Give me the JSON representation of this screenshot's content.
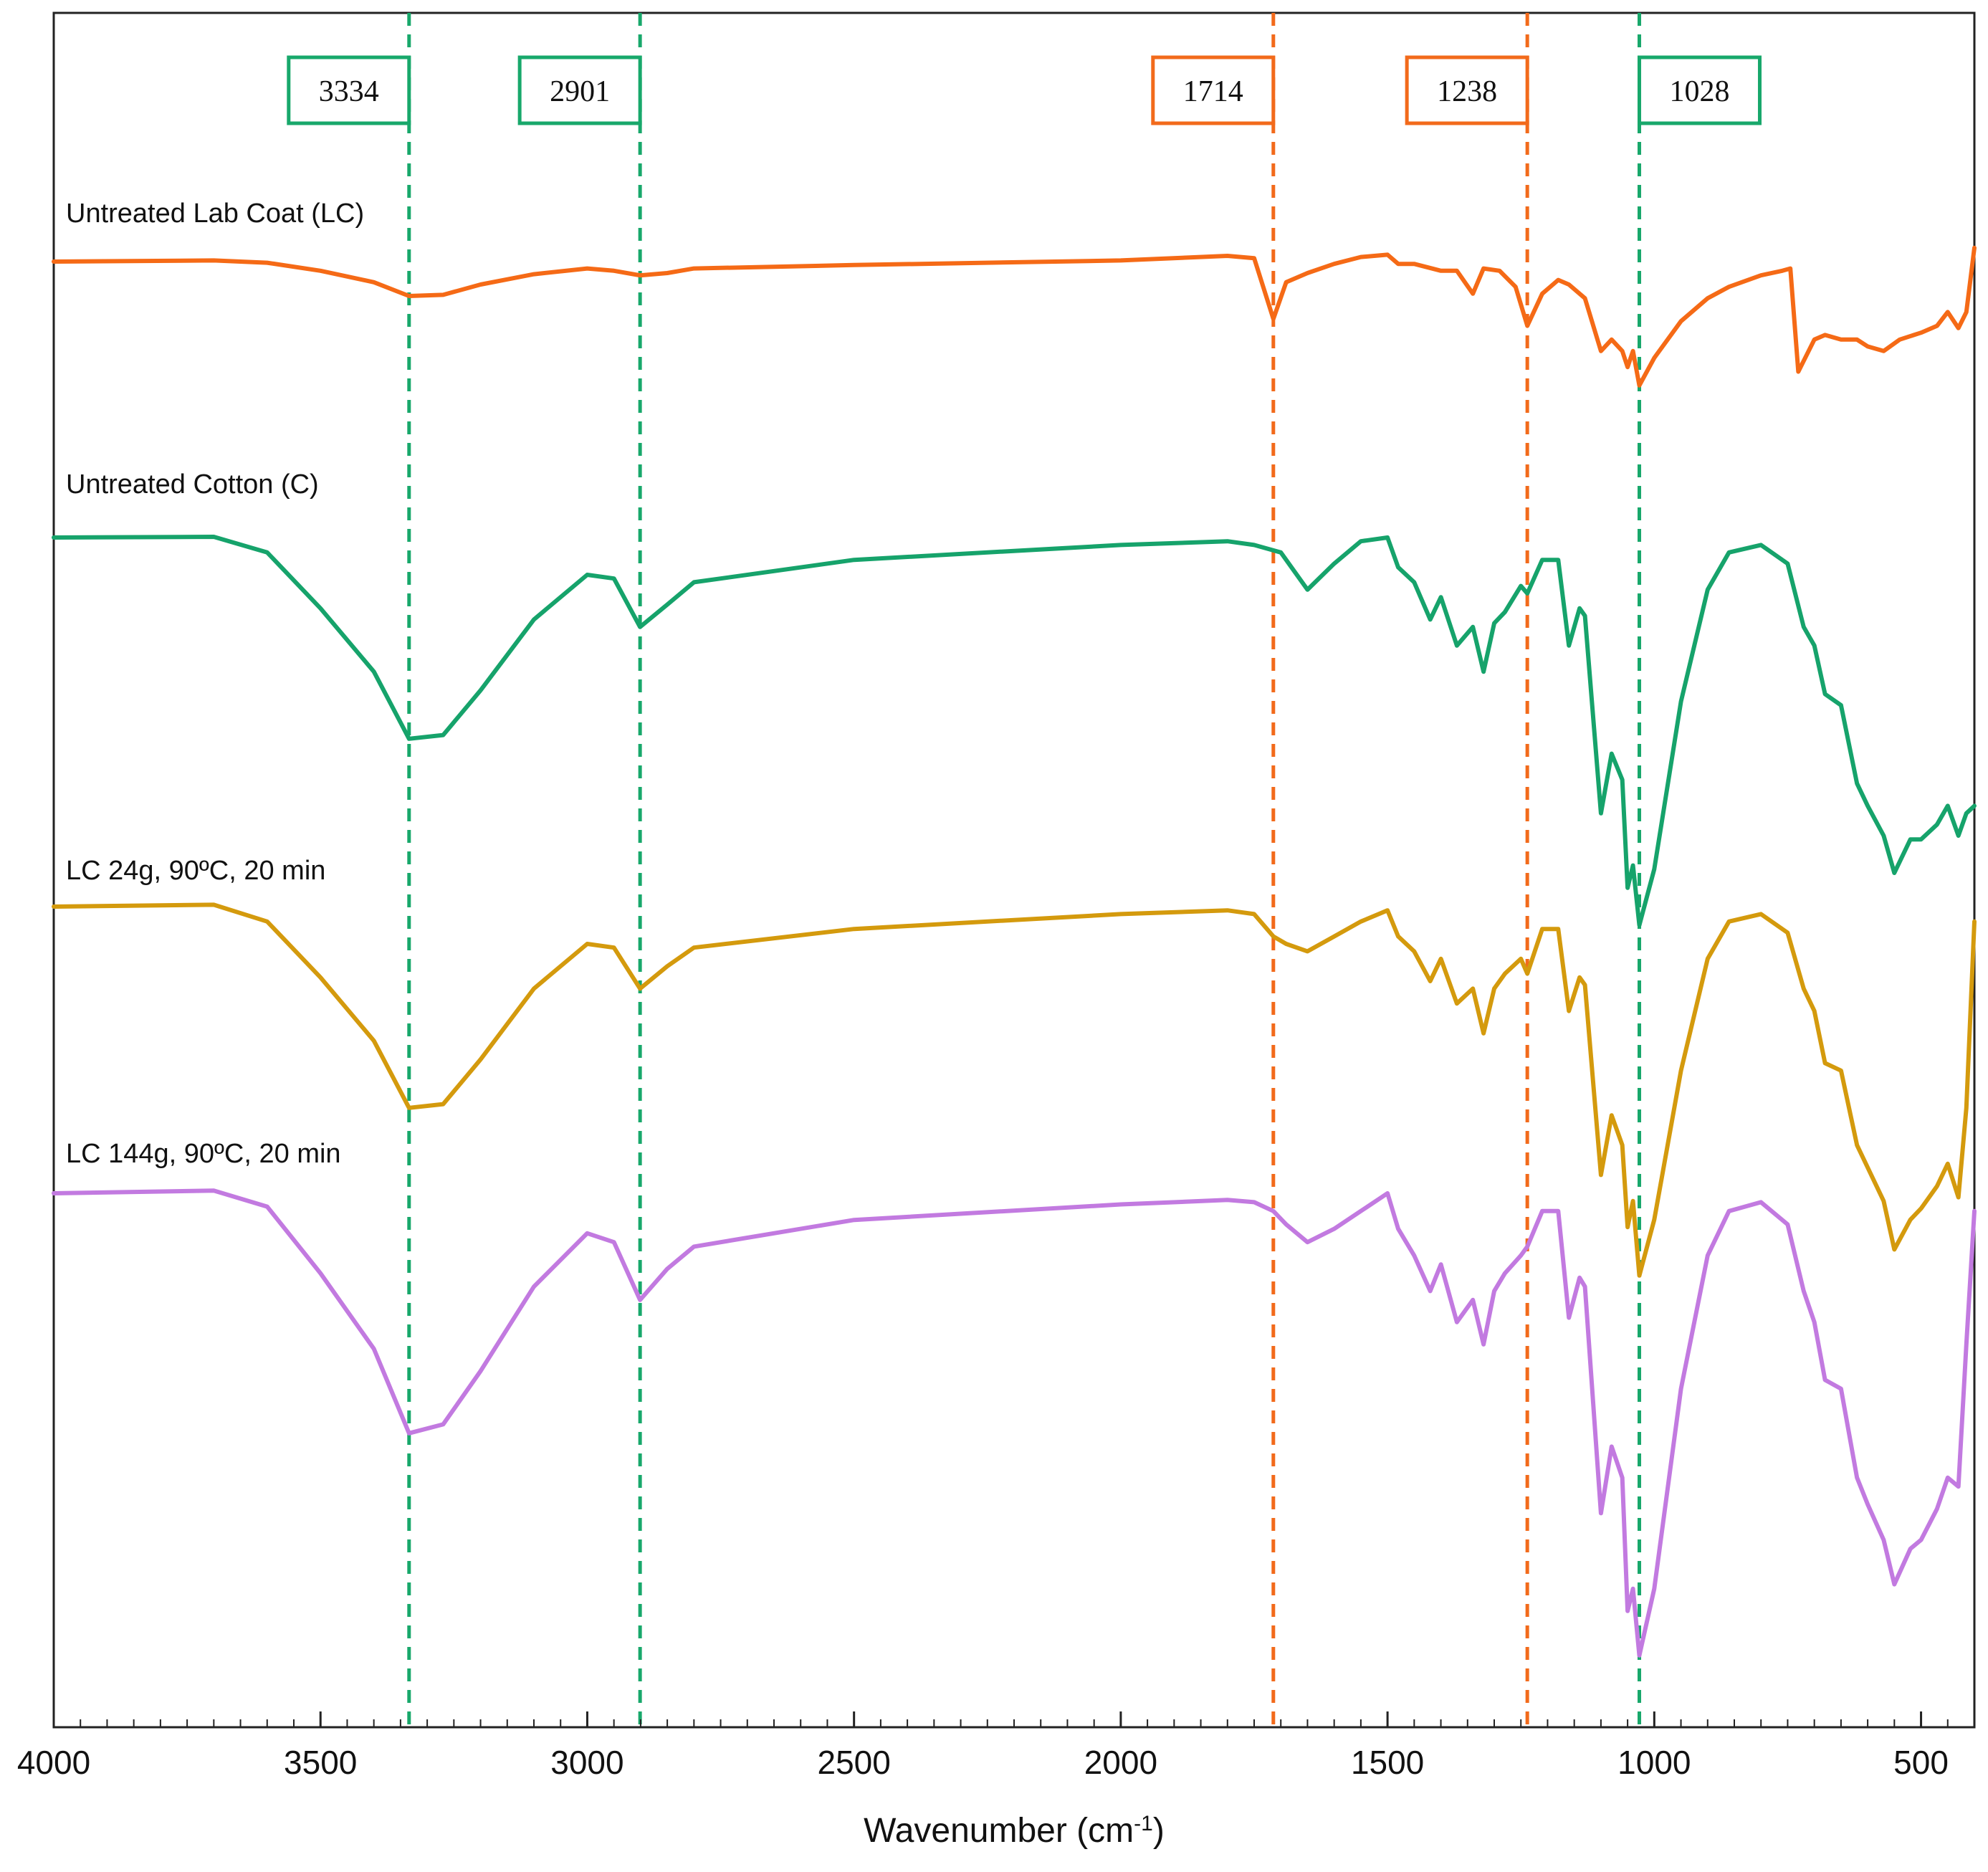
{
  "chart_data": {
    "type": "line",
    "title": "",
    "xlabel": "Wavenumber (cm",
    "xlabel_sup": "-1",
    "xlabel_end": ")",
    "ylabel": "",
    "xlim": [
      4000,
      400
    ],
    "x_ticks": [
      4000,
      3500,
      3000,
      2500,
      2000,
      1500,
      1000,
      500
    ],
    "grid": false,
    "legend": "inline labels above each trace (left)",
    "markers": [
      {
        "label": "3334",
        "x": 3334,
        "color": "#18a86b",
        "box_side": "left"
      },
      {
        "label": "2901",
        "x": 2901,
        "color": "#18a86b",
        "box_side": "left"
      },
      {
        "label": "1714",
        "x": 1714,
        "color": "#f26a1b",
        "box_side": "left"
      },
      {
        "label": "1238",
        "x": 1238,
        "color": "#f26a1b",
        "box_side": "left"
      },
      {
        "label": "1028",
        "x": 1028,
        "color": "#18a86b",
        "box_side": "right"
      }
    ],
    "series": [
      {
        "name": "Untreated Lab Coat (LC)",
        "color": "#f56a16",
        "baseline": 0.84,
        "points": [
          [
            4000,
            0.84
          ],
          [
            3700,
            0.845
          ],
          [
            3600,
            0.835
          ],
          [
            3500,
            0.8
          ],
          [
            3400,
            0.75
          ],
          [
            3334,
            0.69
          ],
          [
            3270,
            0.695
          ],
          [
            3200,
            0.74
          ],
          [
            3100,
            0.785
          ],
          [
            3000,
            0.81
          ],
          [
            2950,
            0.8
          ],
          [
            2901,
            0.78
          ],
          [
            2850,
            0.79
          ],
          [
            2800,
            0.81
          ],
          [
            2500,
            0.825
          ],
          [
            2000,
            0.845
          ],
          [
            1800,
            0.865
          ],
          [
            1750,
            0.855
          ],
          [
            1714,
            0.59
          ],
          [
            1690,
            0.75
          ],
          [
            1650,
            0.79
          ],
          [
            1600,
            0.83
          ],
          [
            1550,
            0.86
          ],
          [
            1500,
            0.87
          ],
          [
            1480,
            0.83
          ],
          [
            1450,
            0.83
          ],
          [
            1400,
            0.8
          ],
          [
            1370,
            0.8
          ],
          [
            1340,
            0.7
          ],
          [
            1320,
            0.81
          ],
          [
            1290,
            0.8
          ],
          [
            1260,
            0.73
          ],
          [
            1238,
            0.56
          ],
          [
            1210,
            0.7
          ],
          [
            1180,
            0.76
          ],
          [
            1160,
            0.74
          ],
          [
            1130,
            0.68
          ],
          [
            1100,
            0.45
          ],
          [
            1080,
            0.5
          ],
          [
            1060,
            0.45
          ],
          [
            1050,
            0.38
          ],
          [
            1040,
            0.45
          ],
          [
            1028,
            0.3
          ],
          [
            1000,
            0.42
          ],
          [
            950,
            0.58
          ],
          [
            900,
            0.68
          ],
          [
            860,
            0.73
          ],
          [
            800,
            0.78
          ],
          [
            760,
            0.8
          ],
          [
            745,
            0.81
          ],
          [
            730,
            0.36
          ],
          [
            700,
            0.5
          ],
          [
            680,
            0.52
          ],
          [
            650,
            0.5
          ],
          [
            620,
            0.5
          ],
          [
            600,
            0.47
          ],
          [
            570,
            0.45
          ],
          [
            540,
            0.5
          ],
          [
            500,
            0.53
          ],
          [
            470,
            0.56
          ],
          [
            450,
            0.62
          ],
          [
            430,
            0.55
          ],
          [
            415,
            0.62
          ],
          [
            400,
            0.9
          ]
        ]
      },
      {
        "name": "Untreated Cotton (C)",
        "color": "#16a36b",
        "baseline": 0.84,
        "points": [
          [
            4000,
            0.84
          ],
          [
            3700,
            0.842
          ],
          [
            3600,
            0.8
          ],
          [
            3500,
            0.65
          ],
          [
            3400,
            0.48
          ],
          [
            3334,
            0.3
          ],
          [
            3270,
            0.31
          ],
          [
            3200,
            0.43
          ],
          [
            3100,
            0.62
          ],
          [
            3000,
            0.74
          ],
          [
            2950,
            0.73
          ],
          [
            2901,
            0.6
          ],
          [
            2850,
            0.66
          ],
          [
            2800,
            0.72
          ],
          [
            2500,
            0.78
          ],
          [
            2000,
            0.82
          ],
          [
            1800,
            0.83
          ],
          [
            1750,
            0.82
          ],
          [
            1700,
            0.8
          ],
          [
            1650,
            0.7
          ],
          [
            1600,
            0.77
          ],
          [
            1550,
            0.83
          ],
          [
            1500,
            0.84
          ],
          [
            1480,
            0.76
          ],
          [
            1450,
            0.72
          ],
          [
            1420,
            0.62
          ],
          [
            1400,
            0.68
          ],
          [
            1370,
            0.55
          ],
          [
            1340,
            0.6
          ],
          [
            1320,
            0.48
          ],
          [
            1300,
            0.61
          ],
          [
            1280,
            0.64
          ],
          [
            1250,
            0.71
          ],
          [
            1238,
            0.69
          ],
          [
            1210,
            0.78
          ],
          [
            1180,
            0.78
          ],
          [
            1160,
            0.55
          ],
          [
            1140,
            0.65
          ],
          [
            1130,
            0.63
          ],
          [
            1100,
            0.1
          ],
          [
            1080,
            0.26
          ],
          [
            1060,
            0.19
          ],
          [
            1050,
            -0.1
          ],
          [
            1040,
            -0.04
          ],
          [
            1028,
            -0.2
          ],
          [
            1000,
            -0.05
          ],
          [
            950,
            0.4
          ],
          [
            900,
            0.7
          ],
          [
            860,
            0.8
          ],
          [
            800,
            0.82
          ],
          [
            750,
            0.77
          ],
          [
            720,
            0.6
          ],
          [
            700,
            0.55
          ],
          [
            680,
            0.42
          ],
          [
            650,
            0.39
          ],
          [
            620,
            0.18
          ],
          [
            600,
            0.12
          ],
          [
            570,
            0.04
          ],
          [
            550,
            -0.06
          ],
          [
            520,
            0.03
          ],
          [
            500,
            0.03
          ],
          [
            470,
            0.07
          ],
          [
            450,
            0.12
          ],
          [
            430,
            0.04
          ],
          [
            415,
            0.1
          ],
          [
            400,
            0.12
          ]
        ]
      },
      {
        "name": "LC 24g, 90ºC, 20 min",
        "color": "#d49a0d",
        "baseline": 0.84,
        "points": [
          [
            4000,
            0.84
          ],
          [
            3700,
            0.845
          ],
          [
            3600,
            0.8
          ],
          [
            3500,
            0.65
          ],
          [
            3400,
            0.48
          ],
          [
            3334,
            0.3
          ],
          [
            3270,
            0.31
          ],
          [
            3200,
            0.43
          ],
          [
            3100,
            0.62
          ],
          [
            3000,
            0.74
          ],
          [
            2950,
            0.73
          ],
          [
            2901,
            0.62
          ],
          [
            2850,
            0.68
          ],
          [
            2800,
            0.73
          ],
          [
            2500,
            0.78
          ],
          [
            2000,
            0.82
          ],
          [
            1800,
            0.83
          ],
          [
            1750,
            0.82
          ],
          [
            1714,
            0.76
          ],
          [
            1690,
            0.74
          ],
          [
            1650,
            0.72
          ],
          [
            1600,
            0.76
          ],
          [
            1550,
            0.8
          ],
          [
            1500,
            0.83
          ],
          [
            1480,
            0.76
          ],
          [
            1450,
            0.72
          ],
          [
            1420,
            0.64
          ],
          [
            1400,
            0.7
          ],
          [
            1370,
            0.58
          ],
          [
            1340,
            0.62
          ],
          [
            1320,
            0.5
          ],
          [
            1300,
            0.62
          ],
          [
            1280,
            0.66
          ],
          [
            1250,
            0.7
          ],
          [
            1238,
            0.66
          ],
          [
            1210,
            0.78
          ],
          [
            1180,
            0.78
          ],
          [
            1160,
            0.56
          ],
          [
            1140,
            0.65
          ],
          [
            1130,
            0.63
          ],
          [
            1100,
            0.12
          ],
          [
            1080,
            0.28
          ],
          [
            1060,
            0.2
          ],
          [
            1050,
            -0.02
          ],
          [
            1040,
            0.05
          ],
          [
            1028,
            -0.15
          ],
          [
            1000,
            0.0
          ],
          [
            950,
            0.4
          ],
          [
            900,
            0.7
          ],
          [
            860,
            0.8
          ],
          [
            800,
            0.82
          ],
          [
            750,
            0.77
          ],
          [
            720,
            0.62
          ],
          [
            700,
            0.56
          ],
          [
            680,
            0.42
          ],
          [
            650,
            0.4
          ],
          [
            620,
            0.2
          ],
          [
            600,
            0.14
          ],
          [
            570,
            0.05
          ],
          [
            550,
            -0.08
          ],
          [
            520,
            0.0
          ],
          [
            500,
            0.03
          ],
          [
            470,
            0.09
          ],
          [
            450,
            0.15
          ],
          [
            430,
            0.06
          ],
          [
            415,
            0.3
          ],
          [
            400,
            0.8
          ]
        ]
      },
      {
        "name": "LC 144g, 90ºC, 20 min",
        "color": "#c27ae0",
        "baseline": 0.84,
        "points": [
          [
            4000,
            0.84
          ],
          [
            3700,
            0.846
          ],
          [
            3600,
            0.81
          ],
          [
            3500,
            0.66
          ],
          [
            3400,
            0.49
          ],
          [
            3334,
            0.3
          ],
          [
            3270,
            0.32
          ],
          [
            3200,
            0.44
          ],
          [
            3100,
            0.63
          ],
          [
            3000,
            0.75
          ],
          [
            2950,
            0.73
          ],
          [
            2901,
            0.6
          ],
          [
            2850,
            0.67
          ],
          [
            2800,
            0.72
          ],
          [
            2500,
            0.78
          ],
          [
            2000,
            0.815
          ],
          [
            1800,
            0.825
          ],
          [
            1750,
            0.82
          ],
          [
            1714,
            0.8
          ],
          [
            1690,
            0.77
          ],
          [
            1650,
            0.73
          ],
          [
            1600,
            0.76
          ],
          [
            1550,
            0.8
          ],
          [
            1500,
            0.84
          ],
          [
            1480,
            0.76
          ],
          [
            1450,
            0.7
          ],
          [
            1420,
            0.62
          ],
          [
            1400,
            0.68
          ],
          [
            1370,
            0.55
          ],
          [
            1340,
            0.6
          ],
          [
            1320,
            0.5
          ],
          [
            1300,
            0.62
          ],
          [
            1280,
            0.66
          ],
          [
            1250,
            0.7
          ],
          [
            1238,
            0.72
          ],
          [
            1210,
            0.8
          ],
          [
            1180,
            0.8
          ],
          [
            1160,
            0.56
          ],
          [
            1140,
            0.65
          ],
          [
            1130,
            0.63
          ],
          [
            1100,
            0.12
          ],
          [
            1080,
            0.27
          ],
          [
            1060,
            0.2
          ],
          [
            1050,
            -0.1
          ],
          [
            1040,
            -0.05
          ],
          [
            1028,
            -0.2
          ],
          [
            1000,
            -0.05
          ],
          [
            950,
            0.4
          ],
          [
            900,
            0.7
          ],
          [
            860,
            0.8
          ],
          [
            800,
            0.82
          ],
          [
            750,
            0.77
          ],
          [
            720,
            0.62
          ],
          [
            700,
            0.55
          ],
          [
            680,
            0.42
          ],
          [
            650,
            0.4
          ],
          [
            620,
            0.2
          ],
          [
            600,
            0.14
          ],
          [
            570,
            0.06
          ],
          [
            550,
            -0.04
          ],
          [
            520,
            0.04
          ],
          [
            500,
            0.06
          ],
          [
            470,
            0.13
          ],
          [
            450,
            0.2
          ],
          [
            430,
            0.18
          ],
          [
            415,
            0.5
          ],
          [
            400,
            0.8
          ]
        ]
      }
    ]
  }
}
